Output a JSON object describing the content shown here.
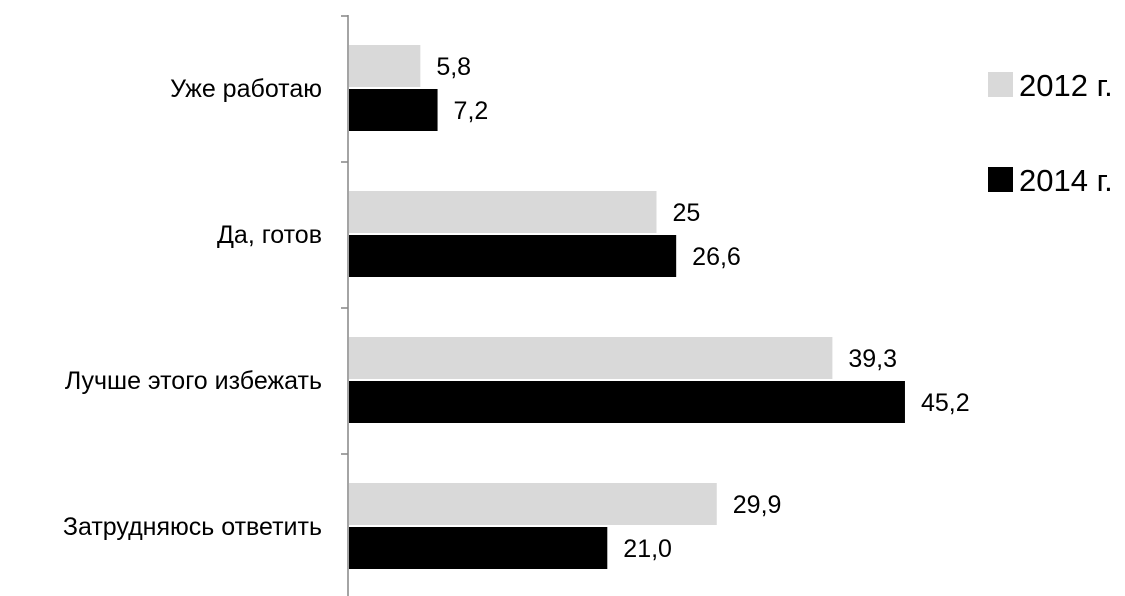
{
  "chart_data": {
    "type": "bar",
    "orientation": "horizontal",
    "categories": [
      "Уже  работаю",
      "Да, готов",
      "Лучше этого избежать",
      "Затрудняюсь ответить"
    ],
    "series": [
      {
        "name": "2012 г.",
        "color": "#d9d9d9",
        "values": [
          5.8,
          25,
          39.3,
          29.9
        ],
        "labels": [
          "5,8",
          "25",
          "39,3",
          "29,9"
        ]
      },
      {
        "name": "2014 г.",
        "color": "#000000",
        "values": [
          7.2,
          26.6,
          45.2,
          21.0
        ],
        "labels": [
          "7,2",
          "26,6",
          "45,2",
          "21,0"
        ]
      }
    ],
    "xlim": [
      0,
      50
    ],
    "grid": false,
    "legend_position": "right"
  }
}
